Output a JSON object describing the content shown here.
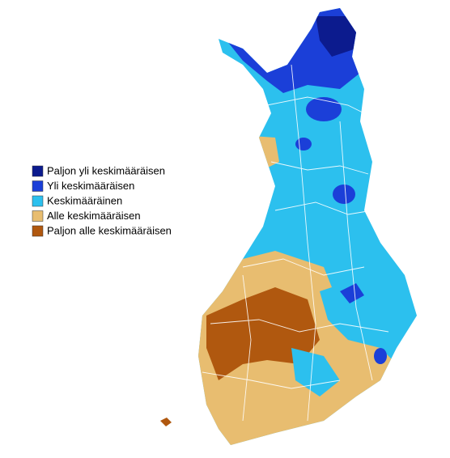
{
  "legend": {
    "items": [
      {
        "label": "Paljon yli keskimääräisen",
        "color": "#0c1b8e"
      },
      {
        "label": "Yli keskimääräisen",
        "color": "#1b3fd8"
      },
      {
        "label": "Keskimääräinen",
        "color": "#2cc0ee"
      },
      {
        "label": "Alle keskimääräisen",
        "color": "#e8bd70"
      },
      {
        "label": "Paljon alle keskimääräisen",
        "color": "#b0580f"
      }
    ]
  }
}
